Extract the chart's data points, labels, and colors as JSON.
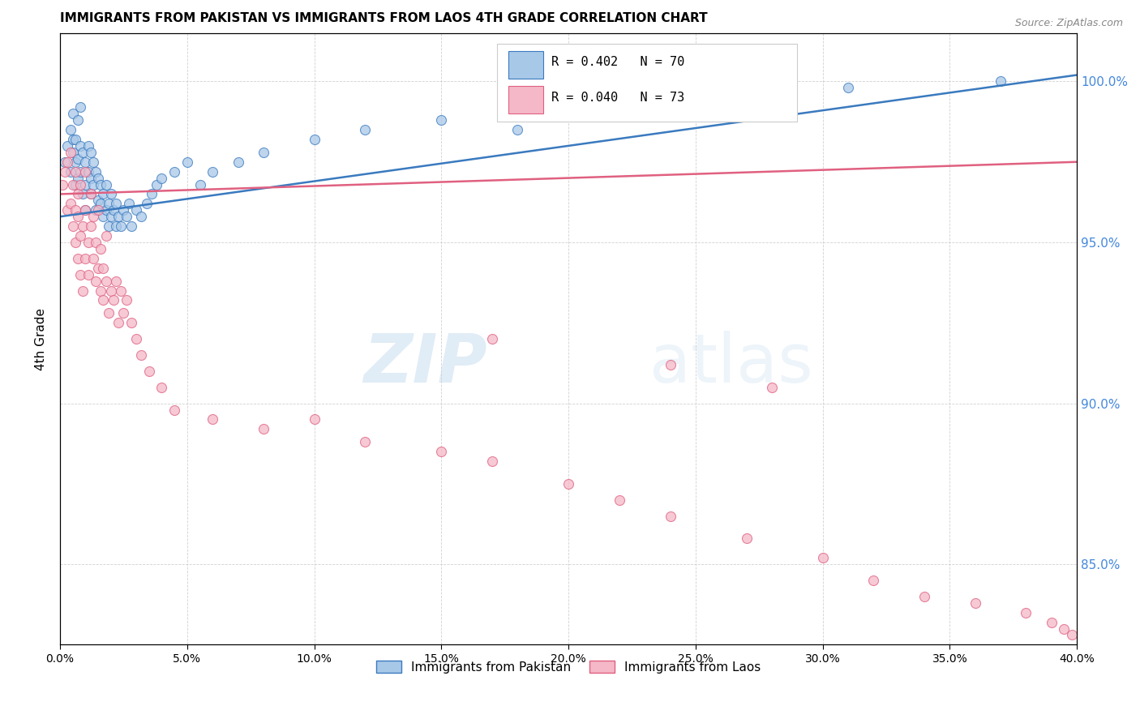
{
  "title": "IMMIGRANTS FROM PAKISTAN VS IMMIGRANTS FROM LAOS 4TH GRADE CORRELATION CHART",
  "source": "Source: ZipAtlas.com",
  "ylabel": "4th Grade",
  "ytick_labels": [
    "85.0%",
    "90.0%",
    "95.0%",
    "100.0%"
  ],
  "ytick_values": [
    0.85,
    0.9,
    0.95,
    1.0
  ],
  "xlim": [
    0.0,
    0.4
  ],
  "ylim": [
    0.825,
    1.015
  ],
  "legend_blue_label": "Immigrants from Pakistan",
  "legend_pink_label": "Immigrants from Laos",
  "R_blue": 0.402,
  "N_blue": 70,
  "R_pink": 0.04,
  "N_pink": 73,
  "blue_color": "#a8c8e8",
  "pink_color": "#f4b8c8",
  "trendline_blue_color": "#3a7abf",
  "trendline_pink_color": "#e06080",
  "blue_scatter_x": [
    0.002,
    0.003,
    0.004,
    0.004,
    0.005,
    0.005,
    0.005,
    0.006,
    0.006,
    0.006,
    0.007,
    0.007,
    0.007,
    0.008,
    0.008,
    0.008,
    0.009,
    0.009,
    0.01,
    0.01,
    0.01,
    0.011,
    0.011,
    0.012,
    0.012,
    0.012,
    0.013,
    0.013,
    0.014,
    0.014,
    0.015,
    0.015,
    0.016,
    0.016,
    0.017,
    0.017,
    0.018,
    0.018,
    0.019,
    0.019,
    0.02,
    0.02,
    0.021,
    0.022,
    0.022,
    0.023,
    0.024,
    0.025,
    0.026,
    0.027,
    0.028,
    0.03,
    0.032,
    0.034,
    0.036,
    0.038,
    0.04,
    0.045,
    0.05,
    0.055,
    0.06,
    0.07,
    0.08,
    0.1,
    0.12,
    0.15,
    0.18,
    0.22,
    0.31,
    0.37
  ],
  "blue_scatter_y": [
    0.975,
    0.98,
    0.972,
    0.985,
    0.978,
    0.982,
    0.99,
    0.968,
    0.975,
    0.982,
    0.97,
    0.976,
    0.988,
    0.972,
    0.98,
    0.992,
    0.965,
    0.978,
    0.96,
    0.968,
    0.975,
    0.972,
    0.98,
    0.965,
    0.97,
    0.978,
    0.968,
    0.975,
    0.96,
    0.972,
    0.963,
    0.97,
    0.962,
    0.968,
    0.958,
    0.965,
    0.96,
    0.968,
    0.955,
    0.962,
    0.958,
    0.965,
    0.96,
    0.955,
    0.962,
    0.958,
    0.955,
    0.96,
    0.958,
    0.962,
    0.955,
    0.96,
    0.958,
    0.962,
    0.965,
    0.968,
    0.97,
    0.972,
    0.975,
    0.968,
    0.972,
    0.975,
    0.978,
    0.982,
    0.985,
    0.988,
    0.985,
    0.99,
    0.998,
    1.0
  ],
  "pink_scatter_x": [
    0.001,
    0.002,
    0.003,
    0.003,
    0.004,
    0.004,
    0.005,
    0.005,
    0.006,
    0.006,
    0.006,
    0.007,
    0.007,
    0.007,
    0.008,
    0.008,
    0.008,
    0.009,
    0.009,
    0.01,
    0.01,
    0.01,
    0.011,
    0.011,
    0.012,
    0.012,
    0.013,
    0.013,
    0.014,
    0.014,
    0.015,
    0.015,
    0.016,
    0.016,
    0.017,
    0.017,
    0.018,
    0.018,
    0.019,
    0.02,
    0.021,
    0.022,
    0.023,
    0.024,
    0.025,
    0.026,
    0.028,
    0.03,
    0.032,
    0.035,
    0.04,
    0.045,
    0.06,
    0.08,
    0.1,
    0.12,
    0.15,
    0.17,
    0.2,
    0.22,
    0.24,
    0.27,
    0.3,
    0.32,
    0.34,
    0.36,
    0.38,
    0.39,
    0.395,
    0.398,
    0.17,
    0.24,
    0.28
  ],
  "pink_scatter_y": [
    0.968,
    0.972,
    0.96,
    0.975,
    0.962,
    0.978,
    0.955,
    0.968,
    0.95,
    0.96,
    0.972,
    0.945,
    0.958,
    0.965,
    0.94,
    0.952,
    0.968,
    0.935,
    0.955,
    0.96,
    0.945,
    0.972,
    0.95,
    0.94,
    0.955,
    0.965,
    0.945,
    0.958,
    0.938,
    0.95,
    0.942,
    0.96,
    0.935,
    0.948,
    0.932,
    0.942,
    0.938,
    0.952,
    0.928,
    0.935,
    0.932,
    0.938,
    0.925,
    0.935,
    0.928,
    0.932,
    0.925,
    0.92,
    0.915,
    0.91,
    0.905,
    0.898,
    0.895,
    0.892,
    0.895,
    0.888,
    0.885,
    0.882,
    0.875,
    0.87,
    0.865,
    0.858,
    0.852,
    0.845,
    0.84,
    0.838,
    0.835,
    0.832,
    0.83,
    0.828,
    0.92,
    0.912,
    0.905
  ],
  "trendline_blue_y0": 0.958,
  "trendline_blue_y1": 1.002,
  "trendline_pink_y0": 0.965,
  "trendline_pink_y1": 0.975
}
